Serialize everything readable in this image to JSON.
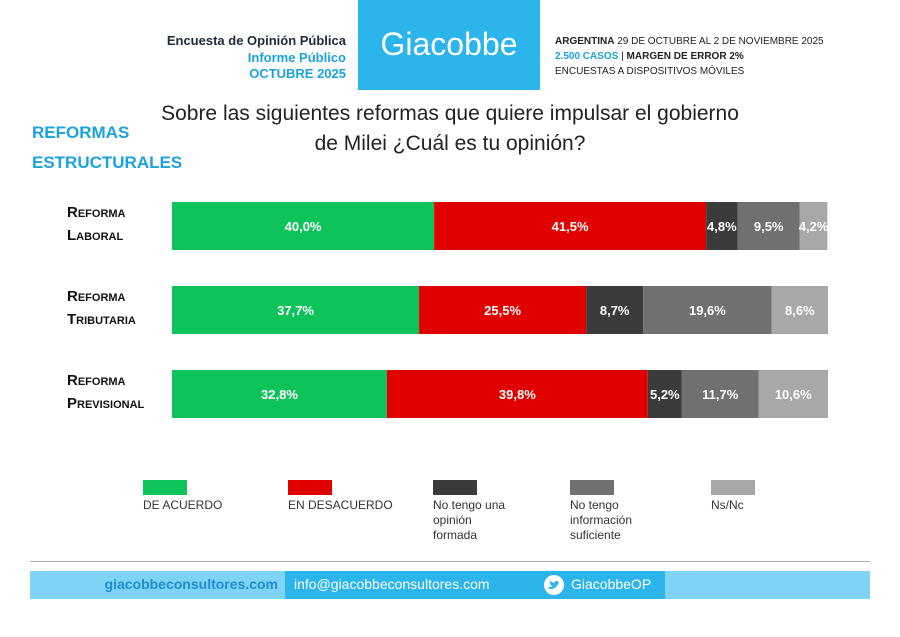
{
  "chart_data": {
    "type": "stacked-bar",
    "header": {
      "survey": "Encuesta de Opinión Pública",
      "report": "Informe Público",
      "month": "OCTUBRE 2025",
      "brand": "Giacobbe",
      "country": "ARGENTINA",
      "dates": "29 DE OCTUBRE AL 2 DE NOVIEMBRE 2025",
      "cases": "2.500 CASOS",
      "separator": "|",
      "margin": "MARGEN DE ERROR 2%",
      "method": "ENCUESTAS A DISPOSITIVOS MÓVILES"
    },
    "section": "REFORMAS ESTRUCTURALES",
    "title": "Sobre las siguientes reformas que quiere impulsar el gobierno de Milei ¿Cuál es tu opinión?",
    "categories": [
      "Reforma Laboral",
      "Reforma Tributaria",
      "Reforma Previsional"
    ],
    "series": [
      {
        "name": "DE ACUERDO",
        "color": "#0dc35a",
        "values": [
          40.0,
          37.7,
          32.8
        ],
        "value_labels": [
          "40,0%",
          "37,7%",
          "32,8%"
        ]
      },
      {
        "name": "EN DESACUERDO",
        "color": "#e00000",
        "values": [
          41.5,
          25.5,
          39.8
        ],
        "value_labels": [
          "41,5%",
          "25,5%",
          "39,8%"
        ]
      },
      {
        "name": "No tengo una opinión formada",
        "color": "#3b3b3b",
        "values": [
          4.8,
          8.7,
          5.2
        ],
        "value_labels": [
          "4,8%",
          "8,7%",
          "5,2%"
        ]
      },
      {
        "name": "No tengo información suficiente",
        "color": "#707070",
        "values": [
          9.5,
          19.6,
          11.7
        ],
        "value_labels": [
          "9,5%",
          "19,6%",
          "11,7%"
        ]
      },
      {
        "name": "Ns/Nc",
        "color": "#a8a8a8",
        "values": [
          4.2,
          8.6,
          10.6
        ],
        "value_labels": [
          "4,2%",
          "8,6%",
          "10,6%"
        ]
      }
    ],
    "footer": {
      "website": "giacobbeconsultores.com",
      "email": "info@giacobbeconsultores.com",
      "twitter": "GiacobbeOP"
    }
  }
}
